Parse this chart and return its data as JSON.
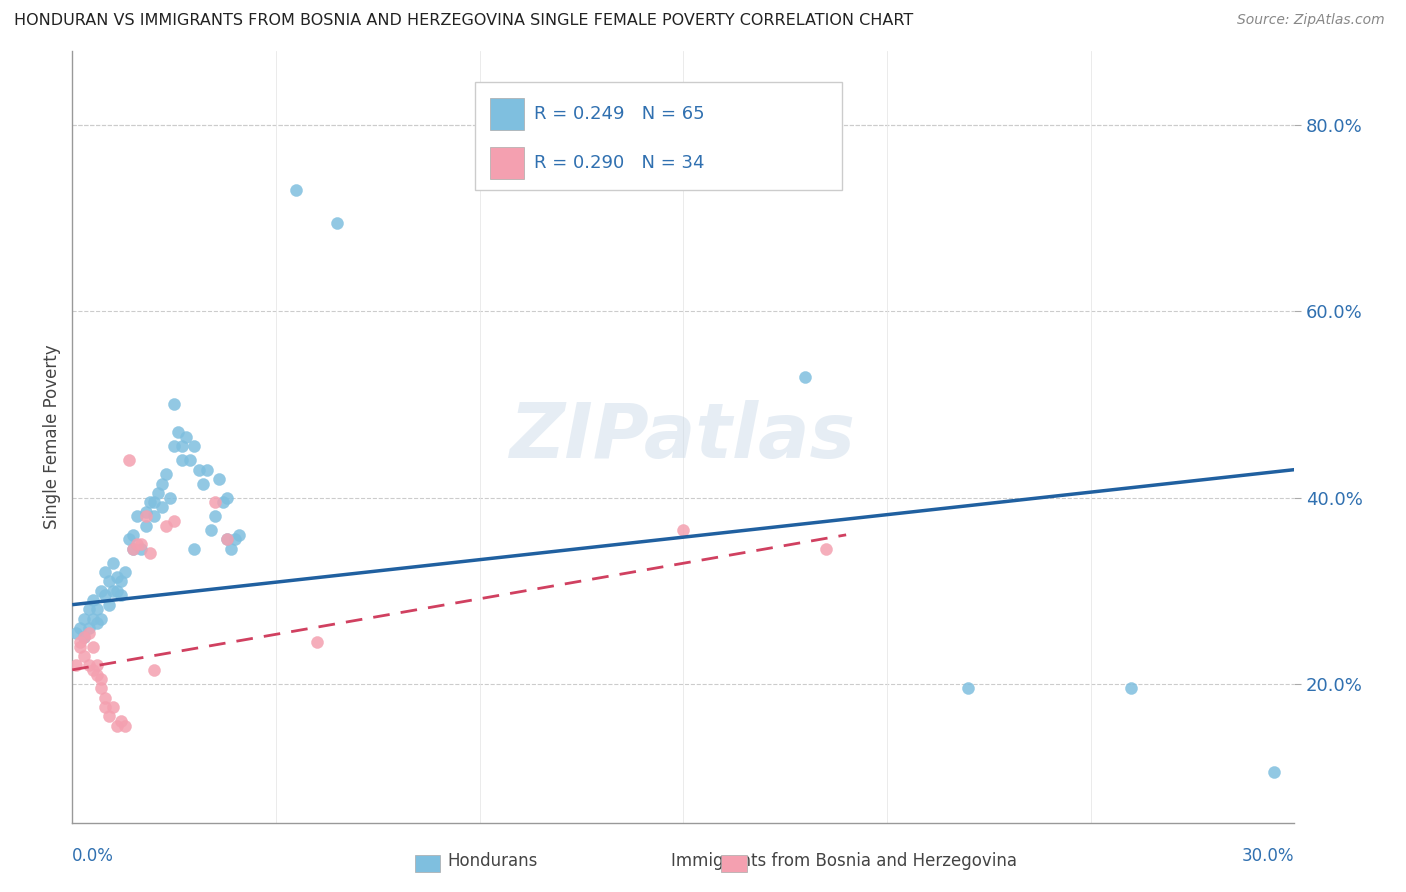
{
  "title": "HONDURAN VS IMMIGRANTS FROM BOSNIA AND HERZEGOVINA SINGLE FEMALE POVERTY CORRELATION CHART",
  "source": "Source: ZipAtlas.com",
  "ylabel": "Single Female Poverty",
  "watermark": "ZIPatlas",
  "blue_color": "#7fbfdf",
  "pink_color": "#f4a0b0",
  "blue_line_color": "#2060a0",
  "pink_line_color": "#d04060",
  "blue_scatter": [
    [
      0.001,
      0.255
    ],
    [
      0.002,
      0.26
    ],
    [
      0.003,
      0.27
    ],
    [
      0.003,
      0.25
    ],
    [
      0.004,
      0.28
    ],
    [
      0.004,
      0.26
    ],
    [
      0.005,
      0.29
    ],
    [
      0.005,
      0.27
    ],
    [
      0.006,
      0.265
    ],
    [
      0.006,
      0.28
    ],
    [
      0.007,
      0.3
    ],
    [
      0.007,
      0.27
    ],
    [
      0.008,
      0.32
    ],
    [
      0.008,
      0.295
    ],
    [
      0.009,
      0.31
    ],
    [
      0.009,
      0.285
    ],
    [
      0.01,
      0.33
    ],
    [
      0.01,
      0.3
    ],
    [
      0.011,
      0.3
    ],
    [
      0.011,
      0.315
    ],
    [
      0.012,
      0.31
    ],
    [
      0.012,
      0.295
    ],
    [
      0.013,
      0.32
    ],
    [
      0.014,
      0.355
    ],
    [
      0.015,
      0.345
    ],
    [
      0.015,
      0.36
    ],
    [
      0.016,
      0.38
    ],
    [
      0.017,
      0.345
    ],
    [
      0.018,
      0.385
    ],
    [
      0.018,
      0.37
    ],
    [
      0.019,
      0.395
    ],
    [
      0.02,
      0.38
    ],
    [
      0.02,
      0.395
    ],
    [
      0.021,
      0.405
    ],
    [
      0.022,
      0.39
    ],
    [
      0.022,
      0.415
    ],
    [
      0.023,
      0.425
    ],
    [
      0.024,
      0.4
    ],
    [
      0.025,
      0.5
    ],
    [
      0.025,
      0.455
    ],
    [
      0.026,
      0.47
    ],
    [
      0.027,
      0.455
    ],
    [
      0.027,
      0.44
    ],
    [
      0.028,
      0.465
    ],
    [
      0.029,
      0.44
    ],
    [
      0.03,
      0.455
    ],
    [
      0.03,
      0.345
    ],
    [
      0.031,
      0.43
    ],
    [
      0.032,
      0.415
    ],
    [
      0.033,
      0.43
    ],
    [
      0.034,
      0.365
    ],
    [
      0.035,
      0.38
    ],
    [
      0.036,
      0.42
    ],
    [
      0.037,
      0.395
    ],
    [
      0.038,
      0.4
    ],
    [
      0.038,
      0.355
    ],
    [
      0.039,
      0.345
    ],
    [
      0.04,
      0.355
    ],
    [
      0.041,
      0.36
    ],
    [
      0.055,
      0.73
    ],
    [
      0.065,
      0.695
    ],
    [
      0.18,
      0.53
    ],
    [
      0.22,
      0.195
    ],
    [
      0.26,
      0.195
    ],
    [
      0.295,
      0.105
    ]
  ],
  "pink_scatter": [
    [
      0.001,
      0.22
    ],
    [
      0.002,
      0.245
    ],
    [
      0.002,
      0.24
    ],
    [
      0.003,
      0.25
    ],
    [
      0.003,
      0.23
    ],
    [
      0.004,
      0.255
    ],
    [
      0.004,
      0.22
    ],
    [
      0.005,
      0.24
    ],
    [
      0.005,
      0.215
    ],
    [
      0.006,
      0.22
    ],
    [
      0.006,
      0.21
    ],
    [
      0.007,
      0.205
    ],
    [
      0.007,
      0.195
    ],
    [
      0.008,
      0.185
    ],
    [
      0.008,
      0.175
    ],
    [
      0.009,
      0.165
    ],
    [
      0.01,
      0.175
    ],
    [
      0.011,
      0.155
    ],
    [
      0.012,
      0.16
    ],
    [
      0.013,
      0.155
    ],
    [
      0.014,
      0.44
    ],
    [
      0.015,
      0.345
    ],
    [
      0.016,
      0.35
    ],
    [
      0.017,
      0.35
    ],
    [
      0.018,
      0.38
    ],
    [
      0.019,
      0.34
    ],
    [
      0.02,
      0.215
    ],
    [
      0.023,
      0.37
    ],
    [
      0.025,
      0.375
    ],
    [
      0.035,
      0.395
    ],
    [
      0.038,
      0.355
    ],
    [
      0.06,
      0.245
    ],
    [
      0.15,
      0.365
    ],
    [
      0.185,
      0.345
    ]
  ],
  "xlim": [
    0.0,
    0.3
  ],
  "ylim": [
    0.05,
    0.88
  ],
  "right_yticks": [
    0.2,
    0.4,
    0.6,
    0.8
  ],
  "right_yticklabels": [
    "20.0%",
    "40.0%",
    "60.0%",
    "80.0%"
  ],
  "blue_line_x": [
    0.0,
    0.3
  ],
  "blue_line_y": [
    0.285,
    0.43
  ],
  "pink_line_x": [
    0.0,
    0.19
  ],
  "pink_line_y": [
    0.215,
    0.36
  ]
}
